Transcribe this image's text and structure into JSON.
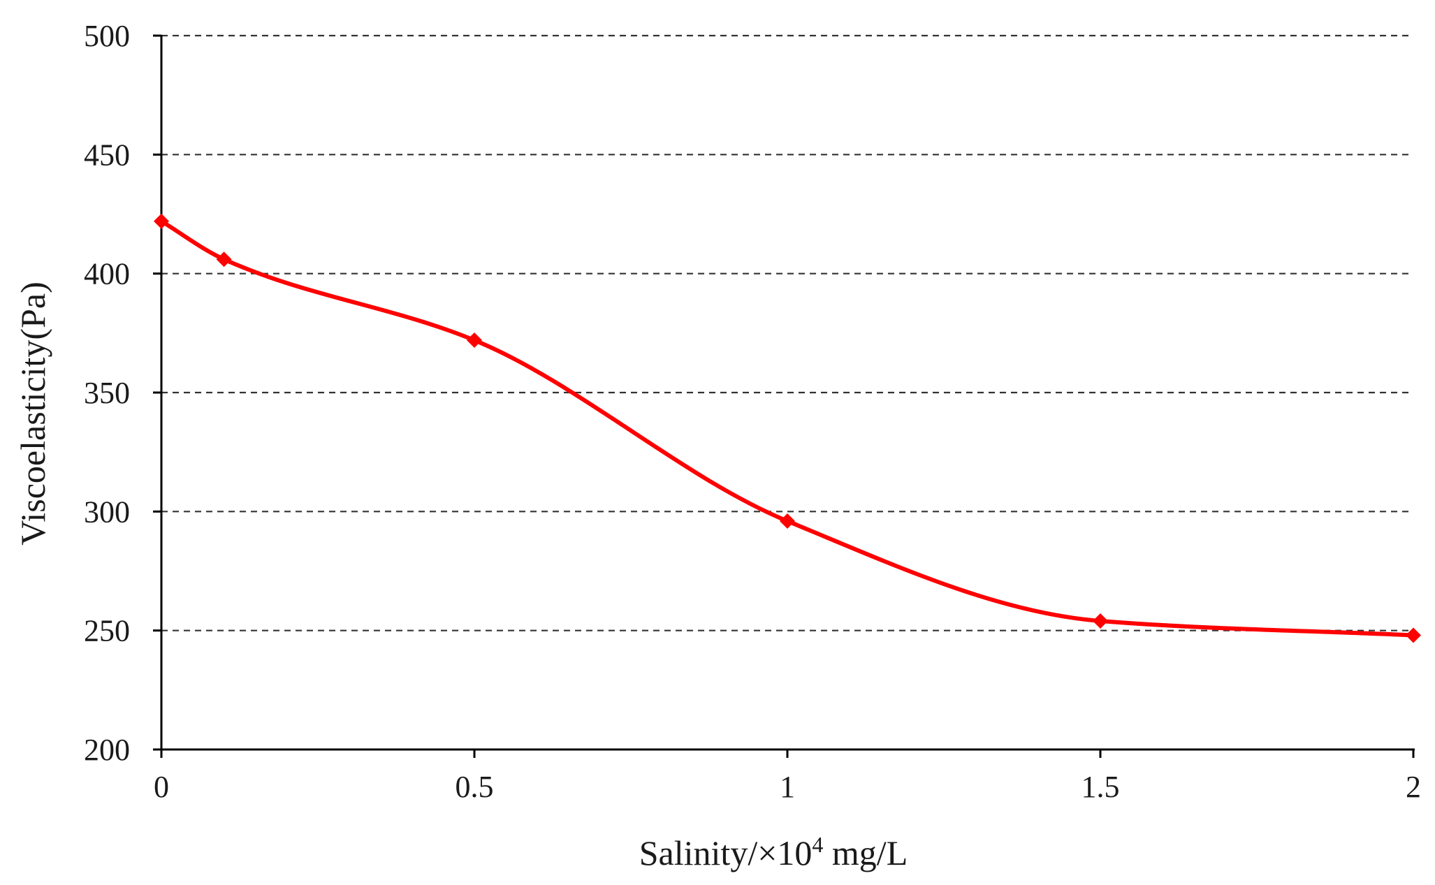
{
  "chart_data": {
    "type": "line",
    "title": "",
    "xlabel": {
      "prefix": "Salinity/×10",
      "superscript": "4",
      "suffix": " mg/L"
    },
    "ylabel": "Viscoelasticity(Pa)",
    "xlim": [
      0,
      2
    ],
    "ylim": [
      200,
      500
    ],
    "xticks": [
      0,
      0.5,
      1,
      1.5,
      2
    ],
    "xtick_labels": [
      "0",
      "0.5",
      "1",
      "1.5",
      "2"
    ],
    "yticks": [
      200,
      250,
      300,
      350,
      400,
      450,
      500
    ],
    "ytick_labels": [
      "200",
      "250",
      "300",
      "350",
      "400",
      "450",
      "500"
    ],
    "grid": "horizontal-dashed",
    "series": [
      {
        "name": "Viscoelasticity",
        "color": "#ff0000",
        "marker": "diamond",
        "smooth": true,
        "x": [
          0,
          0.1,
          0.5,
          1,
          1.5,
          2
        ],
        "y": [
          422,
          406,
          372,
          296,
          254,
          248
        ]
      }
    ]
  }
}
